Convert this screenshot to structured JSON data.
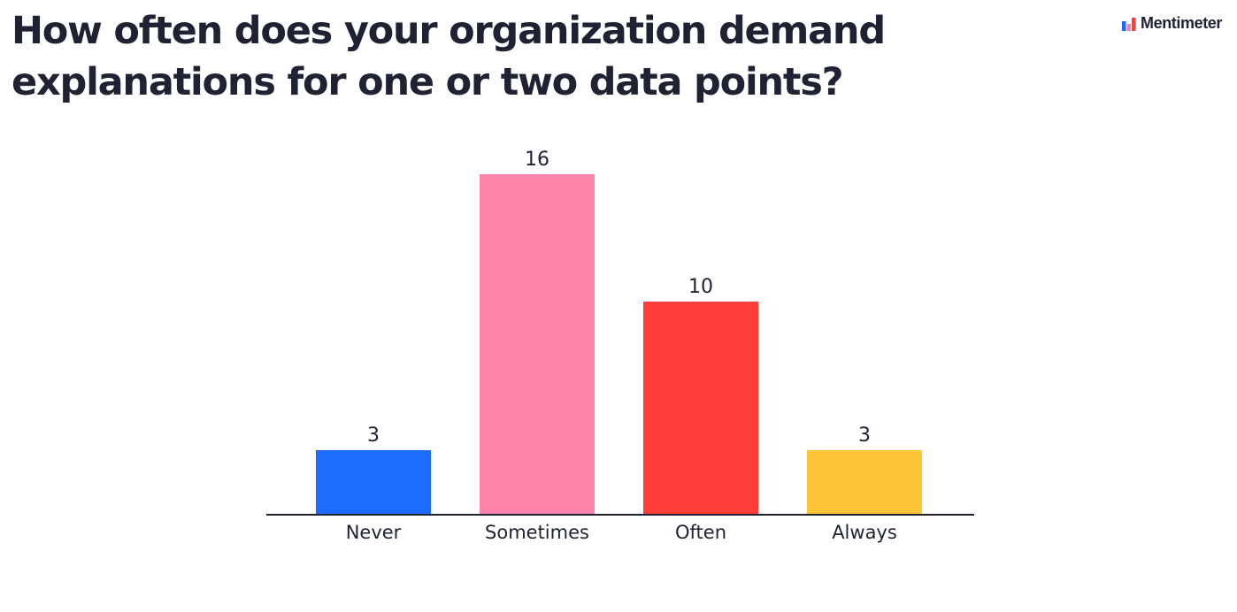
{
  "header": {
    "title": "How often does your organization demand explanations for one or two data points?"
  },
  "brand": {
    "name": "Mentimeter",
    "icon": "mentimeter-logo-icon"
  },
  "chart_data": {
    "type": "bar",
    "title": "How often does your organization demand explanations for one or two data points?",
    "categories": [
      "Never",
      "Sometimes",
      "Often",
      "Always"
    ],
    "values": [
      3,
      16,
      10,
      3
    ],
    "colors": [
      "#1d6cff",
      "#ff84ab",
      "#ff3e3c",
      "#ffc53a"
    ],
    "data_labels": [
      "3",
      "16",
      "10",
      "3"
    ],
    "xlabel": "",
    "ylabel": "",
    "ylim": [
      0,
      16
    ],
    "grid": false,
    "legend": "none"
  }
}
